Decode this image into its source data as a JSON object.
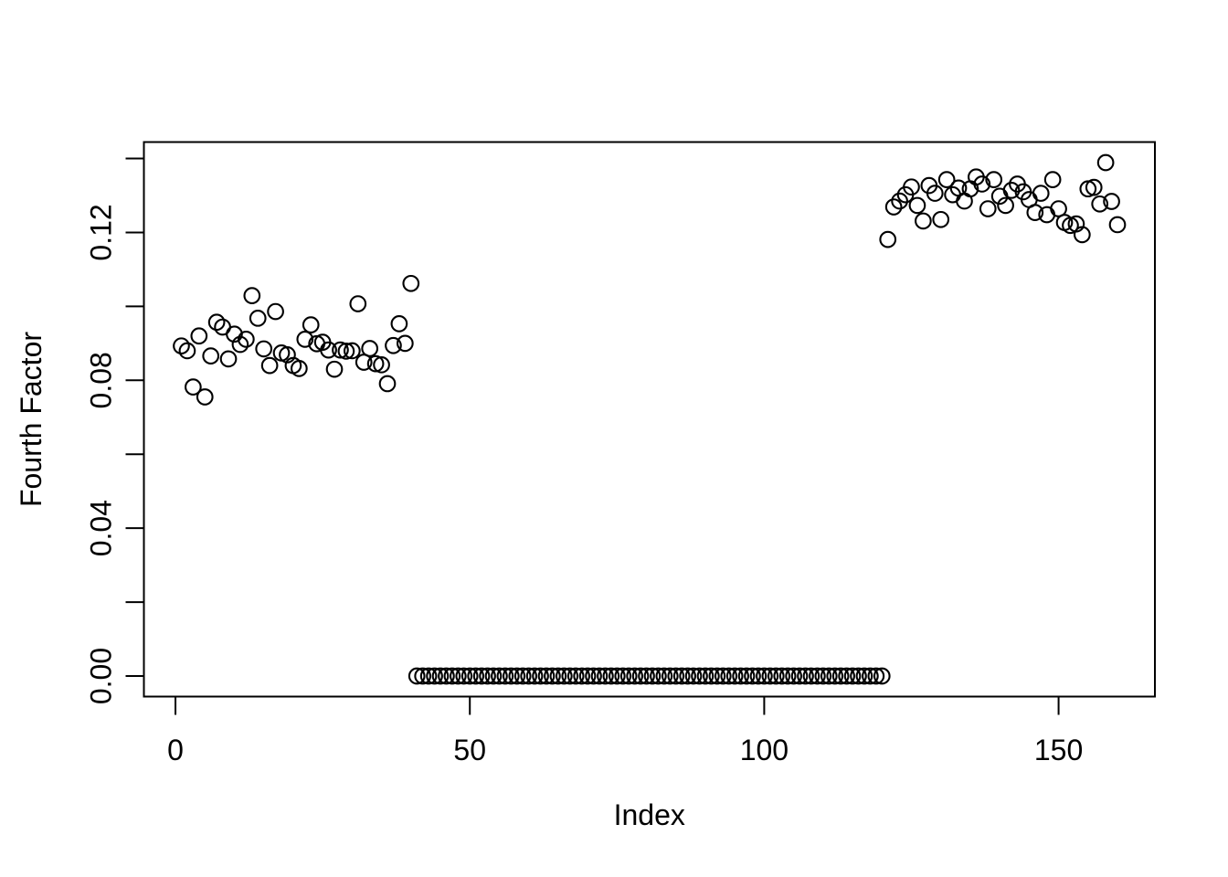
{
  "colors": {
    "foreground": "#000000",
    "background": "#ffffff"
  },
  "chart_data": {
    "type": "scatter",
    "xlabel": "Index",
    "ylabel": "Fourth Factor",
    "xlim": [
      -5.36,
      166.36
    ],
    "ylim": [
      -0.005556,
      0.144456
    ],
    "grid": false,
    "legend": null,
    "x_ticks": [
      {
        "value": 0,
        "label": "0"
      },
      {
        "value": 50,
        "label": "50"
      },
      {
        "value": 100,
        "label": "100"
      },
      {
        "value": 150,
        "label": "150"
      }
    ],
    "y_ticks": [
      {
        "value": 0.0,
        "label": "0.00"
      },
      {
        "value": 0.02,
        "label": ""
      },
      {
        "value": 0.04,
        "label": "0.04"
      },
      {
        "value": 0.06,
        "label": ""
      },
      {
        "value": 0.08,
        "label": "0.08"
      },
      {
        "value": 0.1,
        "label": ""
      },
      {
        "value": 0.12,
        "label": "0.12"
      },
      {
        "value": 0.14,
        "label": ""
      }
    ],
    "marker": {
      "symbol": "open-circle",
      "color": "#000000"
    },
    "series": [
      {
        "name": "Fourth Factor",
        "points": [
          [
            1,
            0.0893
          ],
          [
            2,
            0.088
          ],
          [
            3,
            0.0782
          ],
          [
            4,
            0.092
          ],
          [
            5,
            0.0755
          ],
          [
            6,
            0.0866
          ],
          [
            7,
            0.0957
          ],
          [
            8,
            0.0944
          ],
          [
            9,
            0.0858
          ],
          [
            10,
            0.0925
          ],
          [
            11,
            0.0897
          ],
          [
            12,
            0.0911
          ],
          [
            13,
            0.1029
          ],
          [
            14,
            0.0968
          ],
          [
            15,
            0.0885
          ],
          [
            16,
            0.084
          ],
          [
            17,
            0.0986
          ],
          [
            18,
            0.0874
          ],
          [
            19,
            0.0869
          ],
          [
            20,
            0.084
          ],
          [
            21,
            0.0832
          ],
          [
            22,
            0.0911
          ],
          [
            23,
            0.095
          ],
          [
            24,
            0.0899
          ],
          [
            25,
            0.0903
          ],
          [
            26,
            0.0882
          ],
          [
            27,
            0.083
          ],
          [
            28,
            0.0882
          ],
          [
            29,
            0.0879
          ],
          [
            30,
            0.088
          ],
          [
            31,
            0.1007
          ],
          [
            32,
            0.0849
          ],
          [
            33,
            0.0886
          ],
          [
            34,
            0.0845
          ],
          [
            35,
            0.0842
          ],
          [
            36,
            0.0791
          ],
          [
            37,
            0.0894
          ],
          [
            38,
            0.0953
          ],
          [
            39,
            0.09
          ],
          [
            40,
            0.1062
          ],
          [
            41,
            0
          ],
          [
            42,
            0
          ],
          [
            43,
            0
          ],
          [
            44,
            0
          ],
          [
            45,
            0
          ],
          [
            46,
            0
          ],
          [
            47,
            0
          ],
          [
            48,
            0
          ],
          [
            49,
            0
          ],
          [
            50,
            0
          ],
          [
            51,
            0
          ],
          [
            52,
            0
          ],
          [
            53,
            0
          ],
          [
            54,
            0
          ],
          [
            55,
            0
          ],
          [
            56,
            0
          ],
          [
            57,
            0
          ],
          [
            58,
            0
          ],
          [
            59,
            0
          ],
          [
            60,
            0
          ],
          [
            61,
            0
          ],
          [
            62,
            0
          ],
          [
            63,
            0
          ],
          [
            64,
            0
          ],
          [
            65,
            0
          ],
          [
            66,
            0
          ],
          [
            67,
            0
          ],
          [
            68,
            0
          ],
          [
            69,
            0
          ],
          [
            70,
            0
          ],
          [
            71,
            0
          ],
          [
            72,
            0
          ],
          [
            73,
            0
          ],
          [
            74,
            0
          ],
          [
            75,
            0
          ],
          [
            76,
            0
          ],
          [
            77,
            0
          ],
          [
            78,
            0
          ],
          [
            79,
            0
          ],
          [
            80,
            0
          ],
          [
            81,
            0
          ],
          [
            82,
            0
          ],
          [
            83,
            0
          ],
          [
            84,
            0
          ],
          [
            85,
            0
          ],
          [
            86,
            0
          ],
          [
            87,
            0
          ],
          [
            88,
            0
          ],
          [
            89,
            0
          ],
          [
            90,
            0
          ],
          [
            91,
            0
          ],
          [
            92,
            0
          ],
          [
            93,
            0
          ],
          [
            94,
            0
          ],
          [
            95,
            0
          ],
          [
            96,
            0
          ],
          [
            97,
            0
          ],
          [
            98,
            0
          ],
          [
            99,
            0
          ],
          [
            100,
            0
          ],
          [
            101,
            0
          ],
          [
            102,
            0
          ],
          [
            103,
            0
          ],
          [
            104,
            0
          ],
          [
            105,
            0
          ],
          [
            106,
            0
          ],
          [
            107,
            0
          ],
          [
            108,
            0
          ],
          [
            109,
            0
          ],
          [
            110,
            0
          ],
          [
            111,
            0
          ],
          [
            112,
            0
          ],
          [
            113,
            0
          ],
          [
            114,
            0
          ],
          [
            115,
            0
          ],
          [
            116,
            0
          ],
          [
            117,
            0
          ],
          [
            118,
            0
          ],
          [
            119,
            0
          ],
          [
            120,
            0
          ],
          [
            121,
            0.1181
          ],
          [
            122,
            0.1269
          ],
          [
            123,
            0.1285
          ],
          [
            124,
            0.1302
          ],
          [
            125,
            0.1323
          ],
          [
            126,
            0.1273
          ],
          [
            127,
            0.1231
          ],
          [
            128,
            0.1327
          ],
          [
            129,
            0.1306
          ],
          [
            130,
            0.1235
          ],
          [
            131,
            0.1343
          ],
          [
            132,
            0.1302
          ],
          [
            133,
            0.132
          ],
          [
            134,
            0.1285
          ],
          [
            135,
            0.1318
          ],
          [
            136,
            0.135
          ],
          [
            137,
            0.1331
          ],
          [
            138,
            0.1264
          ],
          [
            139,
            0.1343
          ],
          [
            140,
            0.1298
          ],
          [
            141,
            0.1273
          ],
          [
            142,
            0.1314
          ],
          [
            143,
            0.1331
          ],
          [
            144,
            0.131
          ],
          [
            145,
            0.1289
          ],
          [
            146,
            0.1254
          ],
          [
            147,
            0.1306
          ],
          [
            148,
            0.1248
          ],
          [
            149,
            0.1343
          ],
          [
            150,
            0.1264
          ],
          [
            151,
            0.1227
          ],
          [
            152,
            0.1219
          ],
          [
            153,
            0.1223
          ],
          [
            154,
            0.1194
          ],
          [
            155,
            0.1318
          ],
          [
            156,
            0.1322
          ],
          [
            157,
            0.1277
          ],
          [
            158,
            0.1389
          ],
          [
            159,
            0.1284
          ],
          [
            160,
            0.1221
          ]
        ]
      }
    ]
  }
}
